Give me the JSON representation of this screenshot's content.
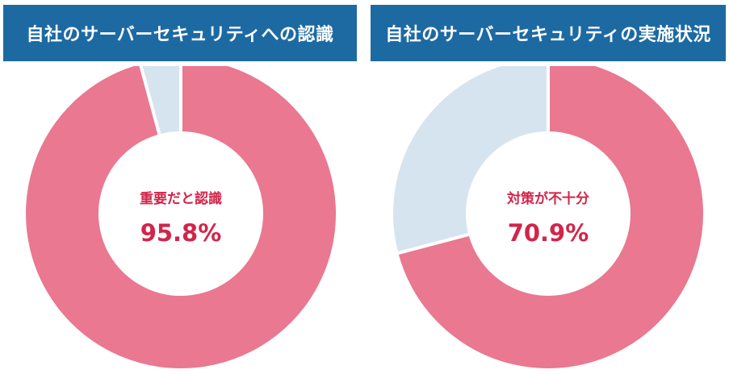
{
  "charts": [
    {
      "title": "自社のサーバーセキュリティへの認識",
      "center_label": "重要だと認識",
      "center_value": "95.8%"
    },
    {
      "title": "自社のサーバーセキュリティの実施状況",
      "center_label": "対策が不十分",
      "center_value": "70.9%"
    }
  ],
  "colors": {
    "header_bg": "#1d6aa3",
    "primary_slice": "#e97890",
    "secondary_slice": "#d6e4f0",
    "center_text": "#d1254a"
  },
  "chart_data": [
    {
      "type": "pie",
      "title": "自社のサーバーセキュリティへの認識",
      "donut": true,
      "slices": [
        {
          "label": "重要だと認識",
          "value": 95.8,
          "color": "#e97890"
        },
        {
          "label": "",
          "value": 4.2,
          "color": "#d6e4f0"
        }
      ],
      "legend": "none"
    },
    {
      "type": "pie",
      "title": "自社のサーバーセキュリティの実施状況",
      "donut": true,
      "slices": [
        {
          "label": "対策が不十分",
          "value": 70.9,
          "color": "#e97890"
        },
        {
          "label": "",
          "value": 29.1,
          "color": "#d6e4f0"
        }
      ],
      "legend": "none"
    }
  ]
}
